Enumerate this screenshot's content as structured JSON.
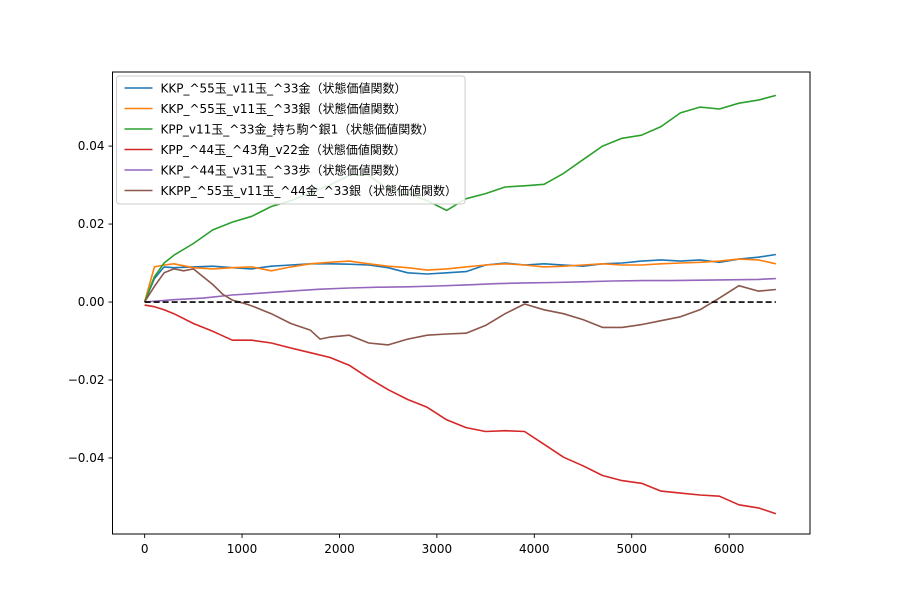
{
  "chart_data": {
    "type": "line",
    "title": "",
    "xlabel": "",
    "ylabel": "",
    "xlim": [
      -330,
      6830
    ],
    "ylim": [
      -0.0595,
      0.059
    ],
    "grid": false,
    "legend_position": "top-left",
    "x_ticks": [
      0,
      1000,
      2000,
      3000,
      4000,
      5000,
      6000
    ],
    "y_ticks": [
      -0.04,
      -0.02,
      0.0,
      0.02,
      0.04
    ],
    "x_tick_labels": [
      "0",
      "1000",
      "2000",
      "3000",
      "4000",
      "5000",
      "6000"
    ],
    "y_tick_labels": [
      "−0.04",
      "−0.02",
      "0.00",
      "0.02",
      "0.04"
    ],
    "reference_line": {
      "y": 0.0,
      "x": [
        0,
        6480
      ],
      "style": "dashed",
      "color": "#000000"
    },
    "series": [
      {
        "name": "KKP_^55玉_v11玉_^33金（状態価値関数）",
        "color": "#1f77b4",
        "x": [
          0,
          100,
          200,
          300,
          500,
          700,
          900,
          1100,
          1300,
          1500,
          1700,
          1900,
          2100,
          2300,
          2500,
          2700,
          2900,
          3100,
          3300,
          3500,
          3700,
          3900,
          4100,
          4300,
          4500,
          4700,
          4900,
          5100,
          5300,
          5500,
          5700,
          5900,
          6100,
          6300,
          6480
        ],
        "values": [
          0.0,
          0.006,
          0.009,
          0.0088,
          0.009,
          0.0092,
          0.0088,
          0.0085,
          0.0092,
          0.0095,
          0.0098,
          0.0098,
          0.0097,
          0.0095,
          0.0088,
          0.0075,
          0.0072,
          0.0075,
          0.0078,
          0.0095,
          0.01,
          0.0095,
          0.0098,
          0.0095,
          0.0092,
          0.0098,
          0.01,
          0.0105,
          0.0108,
          0.0105,
          0.0108,
          0.0102,
          0.011,
          0.0115,
          0.0122
        ]
      },
      {
        "name": "KKP_^55玉_v11玉_^33銀（状態価値関数）",
        "color": "#ff7f0e",
        "x": [
          0,
          100,
          200,
          300,
          500,
          700,
          900,
          1100,
          1300,
          1500,
          1700,
          1900,
          2100,
          2300,
          2500,
          2700,
          2900,
          3100,
          3300,
          3500,
          3700,
          3900,
          4100,
          4300,
          4500,
          4700,
          4900,
          5100,
          5300,
          5500,
          5700,
          5900,
          6100,
          6300,
          6480
        ],
        "values": [
          0.0,
          0.009,
          0.0095,
          0.0098,
          0.0088,
          0.0085,
          0.0088,
          0.009,
          0.008,
          0.009,
          0.0098,
          0.0102,
          0.0105,
          0.0098,
          0.0092,
          0.0088,
          0.0082,
          0.0085,
          0.009,
          0.0095,
          0.0098,
          0.0095,
          0.009,
          0.0092,
          0.0095,
          0.0098,
          0.0095,
          0.0095,
          0.0098,
          0.01,
          0.0102,
          0.0105,
          0.011,
          0.0108,
          0.0098
        ]
      },
      {
        "name": "KPP_v11玉_^33金_持ち駒^銀1（状態価値関数）",
        "color": "#2ca02c",
        "x": [
          0,
          100,
          200,
          300,
          500,
          700,
          900,
          1100,
          1300,
          1500,
          1700,
          1900,
          2100,
          2300,
          2500,
          2700,
          2900,
          3100,
          3300,
          3500,
          3700,
          3900,
          4100,
          4300,
          4500,
          4700,
          4900,
          5100,
          5300,
          5500,
          5700,
          5900,
          6100,
          6300,
          6480
        ],
        "values": [
          0.0,
          0.0065,
          0.01,
          0.012,
          0.015,
          0.0185,
          0.0205,
          0.022,
          0.0245,
          0.026,
          0.028,
          0.03,
          0.0325,
          0.0325,
          0.029,
          0.028,
          0.026,
          0.0235,
          0.0265,
          0.0278,
          0.0295,
          0.0298,
          0.0302,
          0.033,
          0.0365,
          0.04,
          0.042,
          0.0428,
          0.045,
          0.0485,
          0.05,
          0.0495,
          0.051,
          0.0518,
          0.053
        ]
      },
      {
        "name": "KPP_^44玉_^43角_v22金（状態価値関数）",
        "color": "#d62728",
        "x": [
          0,
          100,
          200,
          300,
          500,
          700,
          900,
          1100,
          1300,
          1500,
          1700,
          1900,
          2100,
          2300,
          2500,
          2700,
          2900,
          3100,
          3300,
          3500,
          3700,
          3900,
          4100,
          4300,
          4500,
          4700,
          4900,
          5100,
          5300,
          5500,
          5700,
          5900,
          6100,
          6300,
          6480
        ],
        "values": [
          -0.0008,
          -0.0012,
          -0.002,
          -0.003,
          -0.0055,
          -0.0075,
          -0.0098,
          -0.0098,
          -0.0105,
          -0.0118,
          -0.013,
          -0.0142,
          -0.0162,
          -0.0195,
          -0.0225,
          -0.025,
          -0.027,
          -0.0302,
          -0.0322,
          -0.0332,
          -0.033,
          -0.0332,
          -0.0365,
          -0.0398,
          -0.042,
          -0.0445,
          -0.0458,
          -0.0465,
          -0.0485,
          -0.049,
          -0.0495,
          -0.0498,
          -0.052,
          -0.0528,
          -0.0543
        ]
      },
      {
        "name": "KKP_^44玉_v31玉_^33歩（状態価値関数）",
        "color": "#9467bd",
        "x": [
          0,
          300,
          600,
          900,
          1200,
          1500,
          1800,
          2100,
          2400,
          2700,
          3000,
          3300,
          3600,
          3900,
          4200,
          4500,
          4800,
          5100,
          5400,
          5700,
          6000,
          6300,
          6480
        ],
        "values": [
          0.0,
          0.0006,
          0.001,
          0.0018,
          0.0023,
          0.0028,
          0.0033,
          0.0036,
          0.0038,
          0.0039,
          0.0041,
          0.0044,
          0.0047,
          0.0049,
          0.005,
          0.0052,
          0.0054,
          0.0055,
          0.0055,
          0.0056,
          0.0057,
          0.0058,
          0.006
        ]
      },
      {
        "name": "KKPP_^55玉_v11玉_^44金_^33銀（状態価値関数）",
        "color": "#8c564b",
        "x": [
          0,
          100,
          200,
          300,
          400,
          500,
          600,
          700,
          800,
          900,
          1000,
          1100,
          1300,
          1500,
          1700,
          1800,
          1900,
          2100,
          2300,
          2500,
          2700,
          2900,
          3100,
          3300,
          3500,
          3700,
          3900,
          4100,
          4300,
          4500,
          4700,
          4900,
          5100,
          5300,
          5500,
          5700,
          5900,
          6100,
          6300,
          6480
        ],
        "values": [
          0.0,
          0.004,
          0.0075,
          0.0085,
          0.008,
          0.0085,
          0.0065,
          0.0045,
          0.002,
          0.0005,
          -0.0002,
          -0.001,
          -0.003,
          -0.0055,
          -0.0072,
          -0.0095,
          -0.009,
          -0.0085,
          -0.0105,
          -0.011,
          -0.0095,
          -0.0085,
          -0.0082,
          -0.008,
          -0.006,
          -0.003,
          -0.0005,
          -0.002,
          -0.003,
          -0.0045,
          -0.0065,
          -0.0065,
          -0.0058,
          -0.0048,
          -0.0038,
          -0.002,
          0.001,
          0.0042,
          0.0028,
          0.0032
        ]
      }
    ]
  }
}
